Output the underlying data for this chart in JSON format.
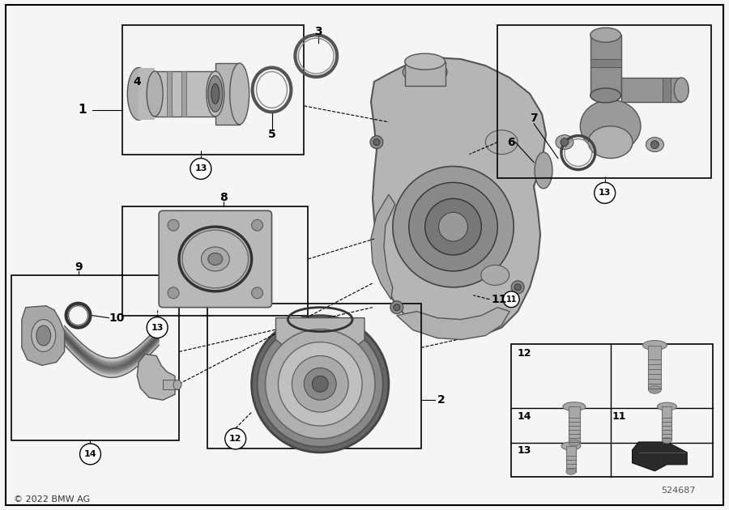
{
  "bg_color": "#f5f5f5",
  "border_color": "#000000",
  "text_color": "#000000",
  "copyright": "© 2022 BMW AG",
  "diagram_id": "524687",
  "fig_width": 9.0,
  "fig_height": 6.3,
  "dpi": 100,
  "gray_light": "#c8c8c8",
  "gray_mid": "#a8a8a8",
  "gray_dark": "#707070",
  "gray_darker": "#505050"
}
